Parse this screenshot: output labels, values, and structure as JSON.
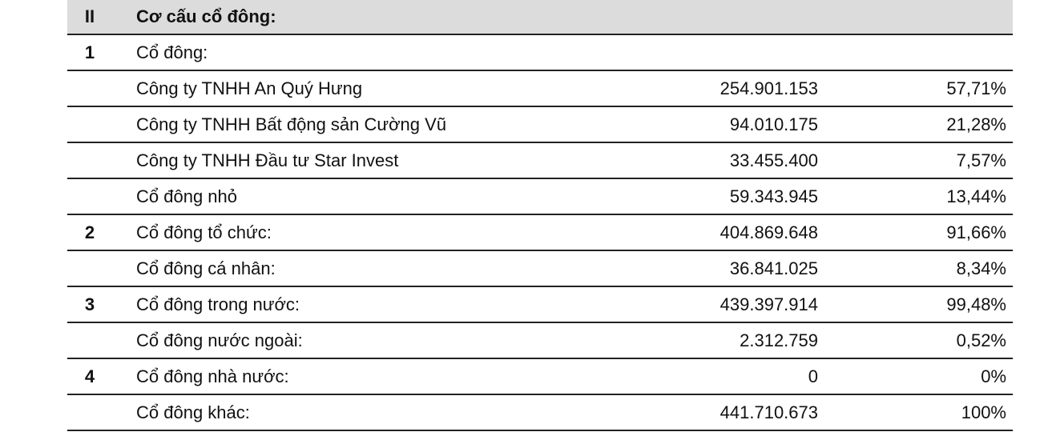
{
  "section": {
    "number": "II",
    "title": "Cơ cấu cổ đông:"
  },
  "rows": [
    {
      "no": "1",
      "name": "Cổ đông:",
      "qty": "",
      "pct": ""
    },
    {
      "no": "",
      "name": "Công ty TNHH An Quý Hưng",
      "qty": "254.901.153",
      "pct": "57,71%"
    },
    {
      "no": "",
      "name": "Công ty TNHH Bất động sản Cường Vũ",
      "qty": "94.010.175",
      "pct": "21,28%"
    },
    {
      "no": "",
      "name": "Công ty TNHH Đầu tư Star Invest",
      "qty": "33.455.400",
      "pct": "7,57%"
    },
    {
      "no": "",
      "name": "Cổ đông nhỏ",
      "qty": "59.343.945",
      "pct": "13,44%"
    },
    {
      "no": "2",
      "name": "Cổ đông tổ chức:",
      "qty": "404.869.648",
      "pct": "91,66%"
    },
    {
      "no": "",
      "name": "Cổ đông cá nhân:",
      "qty": "36.841.025",
      "pct": "8,34%"
    },
    {
      "no": "3",
      "name": "Cổ đông trong nước:",
      "qty": "439.397.914",
      "pct": "99,48%"
    },
    {
      "no": "",
      "name": "Cổ đông nước ngoài:",
      "qty": "2.312.759",
      "pct": "0,52%"
    },
    {
      "no": "4",
      "name": "Cổ đông nhà nước:",
      "qty": "0",
      "pct": "0%"
    },
    {
      "no": "",
      "name": "Cổ đông khác:",
      "qty": "441.710.673",
      "pct": "100%"
    }
  ]
}
